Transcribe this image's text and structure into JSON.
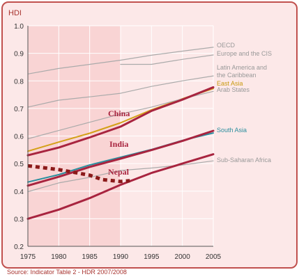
{
  "chart_data": {
    "type": "line",
    "title": "HDI",
    "xlabel": "",
    "ylabel": "",
    "xlim": [
      1975,
      2005
    ],
    "ylim": [
      0.2,
      1.0
    ],
    "x_ticks": [
      "1975",
      "1980",
      "1985",
      "1990",
      "1995",
      "2000",
      "2005"
    ],
    "y_ticks": [
      "0.2",
      "0.3",
      "0.4",
      "0.5",
      "0.6",
      "0.7",
      "0.8",
      "0.9",
      "1.0"
    ],
    "grid": true,
    "shaded_region": [
      1975,
      1990
    ],
    "series": [
      {
        "name": "OECD",
        "color": "#aaaaaa",
        "x": [
          1975,
          1980,
          1985,
          1990,
          1995,
          2000,
          2005
        ],
        "y": [
          0.825,
          0.845,
          0.86,
          0.875,
          0.893,
          0.908,
          0.922
        ]
      },
      {
        "name": "Europe and the CIS",
        "color": "#aaaaaa",
        "x": [
          1990,
          1995,
          2000,
          2005
        ],
        "y": [
          0.86,
          0.86,
          0.878,
          0.894
        ]
      },
      {
        "name": "Latin America and the Caribbean",
        "color": "#aaaaaa",
        "x": [
          1975,
          1980,
          1985,
          1990,
          1995,
          2000,
          2005
        ],
        "y": [
          0.705,
          0.73,
          0.742,
          0.755,
          0.78,
          0.8,
          0.818
        ]
      },
      {
        "name": "East Asia",
        "color": "#d4a017",
        "x": [
          1975,
          1980,
          1985,
          1990,
          1995,
          2000,
          2005
        ],
        "y": [
          0.545,
          0.578,
          0.61,
          0.648,
          0.695,
          0.735,
          0.772
        ]
      },
      {
        "name": "Arab States",
        "color": "#aaaaaa",
        "x": [
          1975,
          1980,
          1985,
          1990,
          1995,
          2000,
          2005
        ],
        "y": [
          0.59,
          0.62,
          0.65,
          0.68,
          0.705,
          0.735,
          0.762
        ]
      },
      {
        "name": "China",
        "color": "#a8243f",
        "x": [
          1975,
          1980,
          1985,
          1990,
          1995,
          2000,
          2005
        ],
        "y": [
          0.53,
          0.558,
          0.595,
          0.634,
          0.691,
          0.732,
          0.777
        ]
      },
      {
        "name": "South Asia",
        "color": "#2b8e9e",
        "x": [
          1975,
          1980,
          1985,
          1990,
          1995,
          2000,
          2005
        ],
        "y": [
          0.433,
          0.46,
          0.495,
          0.523,
          0.551,
          0.584,
          0.611
        ]
      },
      {
        "name": "India",
        "color": "#a8243f",
        "x": [
          1975,
          1980,
          1985,
          1990,
          1995,
          2000,
          2005
        ],
        "y": [
          0.42,
          0.452,
          0.488,
          0.518,
          0.549,
          0.582,
          0.619
        ]
      },
      {
        "name": "Sub-Saharan Africa",
        "color": "#aaaaaa",
        "x": [
          1975,
          1980,
          1985,
          1990,
          1995,
          2000,
          2005
        ],
        "y": [
          0.398,
          0.43,
          0.45,
          0.475,
          0.484,
          0.495,
          0.51
        ]
      },
      {
        "name": "Nepal",
        "color": "#a8243f",
        "x": [
          1975,
          1980,
          1985,
          1990,
          1995,
          2000,
          2005
        ],
        "y": [
          0.3,
          0.333,
          0.375,
          0.423,
          0.466,
          0.5,
          0.534
        ]
      },
      {
        "name": "",
        "color": "#8b1a1a",
        "dashed": true,
        "x": [
          1975,
          1980,
          1985,
          1987,
          1990,
          1991.5
        ],
        "y": [
          0.492,
          0.478,
          0.458,
          0.442,
          0.435,
          0.438
        ]
      }
    ],
    "legend_labels": [
      {
        "text": "OECD",
        "color": "#999999"
      },
      {
        "text": "Europe and the CIS",
        "color": "#999999"
      },
      {
        "text": "Latin America and",
        "color": "#999999"
      },
      {
        "text": "the Caribbean",
        "color": "#999999"
      },
      {
        "text": "East Asia",
        "color": "#c99a10"
      },
      {
        "text": "Arab States",
        "color": "#999999"
      },
      {
        "text": "South Asia",
        "color": "#2b8e9e"
      },
      {
        "text": "Sub-Saharan Africa",
        "color": "#999999"
      }
    ],
    "annotations": [
      {
        "text": "China",
        "color": "#a8243f"
      },
      {
        "text": "India",
        "color": "#a8243f"
      },
      {
        "text": "Nepal",
        "color": "#a8243f"
      }
    ]
  },
  "source_text": "Source: Indicator Table 2 - HDR 2007/2008"
}
